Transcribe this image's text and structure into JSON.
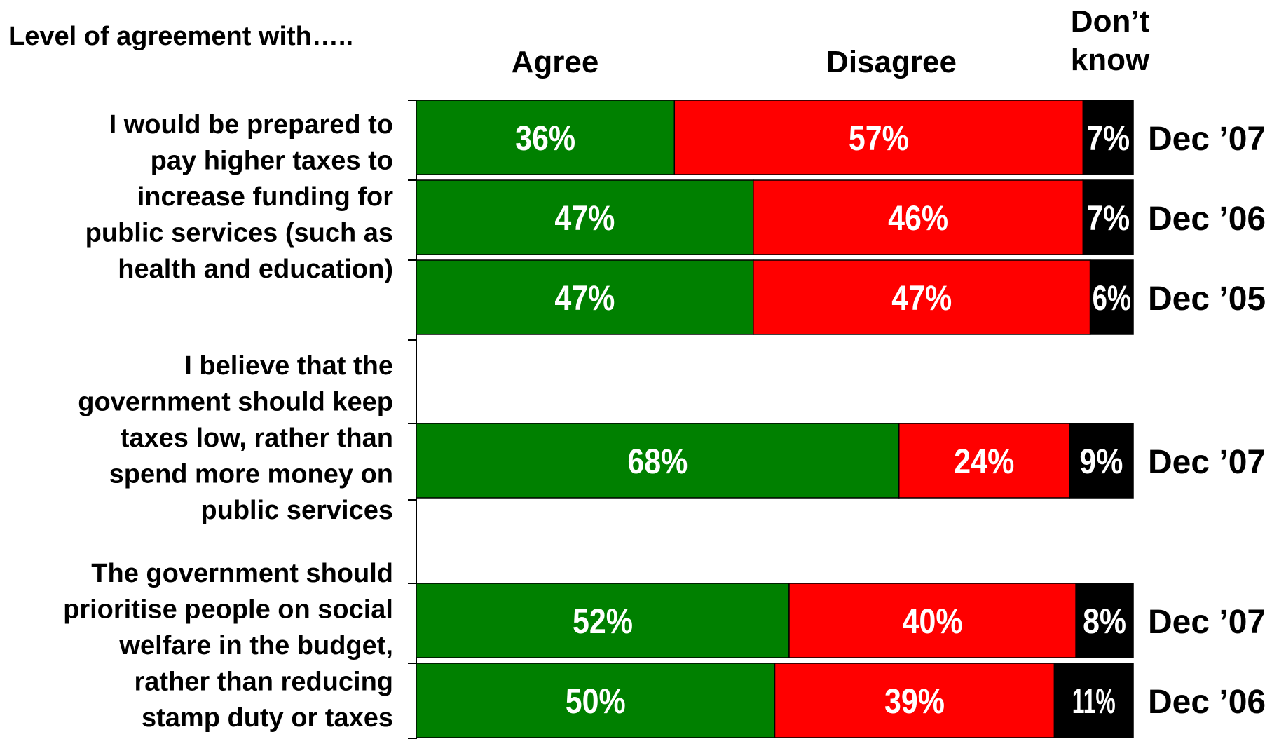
{
  "chart_data": {
    "type": "bar",
    "stacked": true,
    "orientation": "horizontal",
    "title": "Level of agreement with…..",
    "legend": [
      "Agree",
      "Disagree",
      "Don’t know"
    ],
    "legend_placement": "top",
    "colors": {
      "Agree": "#008000",
      "Disagree": "#ff0000",
      "Don’t know": "#000000"
    },
    "label_colors": {
      "Agree": "#ffffff",
      "Disagree": "#ffffff",
      "Don’t know": "#ffffff"
    },
    "xlim": [
      0,
      100
    ],
    "groups": [
      {
        "question": "I would be prepared to pay higher taxes to increase funding for public services (such as health and education)",
        "question_lines": [
          "I would be prepared to",
          "pay higher taxes to",
          "increase funding for",
          "public services (such as",
          "health and education)"
        ],
        "bars": [
          {
            "period": "Dec ’07",
            "values": [
              36,
              57,
              7
            ],
            "labels": [
              "36%",
              "57%",
              "7%"
            ]
          },
          {
            "period": "Dec ’06",
            "values": [
              47,
              46,
              7
            ],
            "labels": [
              "47%",
              "46%",
              "7%"
            ]
          },
          {
            "period": "Dec ’05",
            "values": [
              47,
              47,
              6
            ],
            "labels": [
              "47%",
              "47%",
              "6%"
            ]
          }
        ]
      },
      {
        "question": "I believe that the government should keep taxes low, rather than spend more money on public services",
        "question_lines": [
          "I believe that the",
          "government should keep",
          "taxes low, rather than",
          "spend more money on",
          "public services"
        ],
        "bars": [
          {
            "period": "Dec ’07",
            "values": [
              68,
              24,
              9
            ],
            "labels": [
              "68%",
              "24%",
              "9%"
            ]
          }
        ]
      },
      {
        "question": "The government should prioritise people on social welfare in the budget, rather than reducing stamp duty or taxes",
        "question_lines": [
          "The government should",
          "prioritise people on social",
          "welfare in the budget,",
          "rather than reducing",
          "stamp duty or taxes"
        ],
        "bars": [
          {
            "period": "Dec ’07",
            "values": [
              52,
              40,
              8
            ],
            "labels": [
              "52%",
              "40%",
              "8%"
            ]
          },
          {
            "period": "Dec ’06",
            "values": [
              50,
              39,
              11
            ],
            "labels": [
              "50%",
              "39%",
              "11%"
            ]
          }
        ]
      }
    ]
  }
}
